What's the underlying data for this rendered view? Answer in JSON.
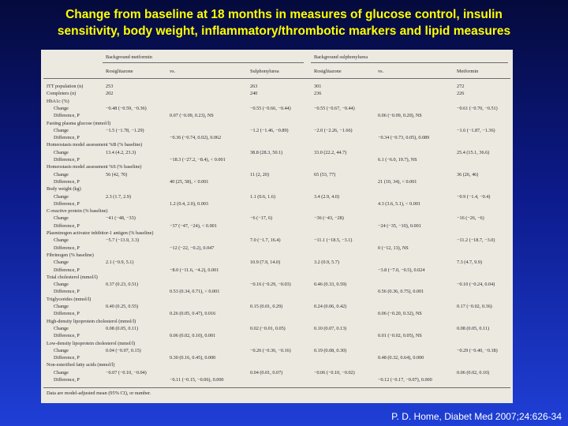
{
  "slide": {
    "title_line1": "Change from baseline at 18 months in measures of glucose control, insulin",
    "title_line2": "sensitivity, body weight, inflammatory/thrombotic markers and lipid measures",
    "citation": "P. D. Home, Diabet Med 2007;24:626-34"
  },
  "table": {
    "group_metformin": "Background metformin",
    "group_sulphonylurea": "Background sulphonylurea",
    "col_headers": [
      "Rosiglitazone",
      "vs.",
      "Sulphonylurea",
      "Rosiglitazone",
      "vs.",
      "Metformin"
    ],
    "rows": [
      {
        "label": "ITT population (n)",
        "cells": [
          "253",
          "",
          "263",
          "301",
          "",
          "272"
        ]
      },
      {
        "label": "Completers (n)",
        "cells": [
          "202",
          "",
          "240",
          "236",
          "",
          "226"
        ]
      },
      {
        "label": "HbA1c (%)",
        "cells": [
          "",
          "",
          "",
          "",
          "",
          ""
        ]
      },
      {
        "label": "Change",
        "cells": [
          "−0.48 (−0.59, −0.36)",
          "",
          "−0.55 (−0.66, −0.44)",
          "−0.55 (−0.67, −0.44)",
          "",
          "−0.61 (−0.70, −0.51)"
        ]
      },
      {
        "label": "Difference, P",
        "cells": [
          "",
          "0.07 (−0.09, 0.23), NS",
          "",
          "",
          "0.06 (−0.09, 0.20), NS",
          ""
        ]
      },
      {
        "label": "Fasting plasma glucose (mmol/l)",
        "cells": [
          "",
          "",
          "",
          "",
          "",
          ""
        ]
      },
      {
        "label": "Change",
        "cells": [
          "−1.5 (−1.78, −1.29)",
          "",
          "−1.2 (−1.46, −0.89)",
          "−2.0 (−2.26, −1.66)",
          "",
          "−1.6 (−1.87, −1.36)"
        ]
      },
      {
        "label": "Difference, P",
        "cells": [
          "",
          "−0.36 (−0.74, 0.02), 0.062",
          "",
          "",
          "−0.34 (−0.73, 0.05), 0.089",
          ""
        ]
      },
      {
        "label": "Homeostasis model assessment %B (% baseline)",
        "cells": [
          "",
          "",
          "",
          "",
          "",
          ""
        ]
      },
      {
        "label": "Change",
        "cells": [
          "13.4 (4.2, 23.3)",
          "",
          "38.8 (28.3, 50.1)",
          "33.0 (22.2, 44.7)",
          "",
          "25.4 (15.1, 36.6)"
        ]
      },
      {
        "label": "Difference, P",
        "cells": [
          "",
          "−18.3 (−27.2, −8.4), < 0.001",
          "",
          "",
          "6.1 (−6.0, 19.7), NS",
          ""
        ]
      },
      {
        "label": "Homeostasis model assessment %S (% baseline)",
        "cells": [
          "",
          "",
          "",
          "",
          "",
          ""
        ]
      },
      {
        "label": "Change",
        "cells": [
          "56 (42, 70)",
          "",
          "11 (2, 20)",
          "65 (53, 77)",
          "",
          "36 (26, 46)"
        ]
      },
      {
        "label": "Difference, P",
        "cells": [
          "",
          "40 (25, 58), < 0.001",
          "",
          "",
          "21 (10, 34), < 0.001",
          ""
        ]
      },
      {
        "label": "Body weight (kg)",
        "cells": [
          "",
          "",
          "",
          "",
          "",
          ""
        ]
      },
      {
        "label": "Change",
        "cells": [
          "2.3 (1.7, 2.9)",
          "",
          "1.1 (0.6, 1.6)",
          "3.4 (2.9, 4.0)",
          "",
          "−0.9 (−1.4, −0.4)"
        ]
      },
      {
        "label": "Difference, P",
        "cells": [
          "",
          "1.2 (0.4, 2.0), 0.003",
          "",
          "",
          "4.3 (3.6, 5.1), < 0.001",
          ""
        ]
      },
      {
        "label": "C-reactive protein (% baseline)",
        "cells": [
          "",
          "",
          "",
          "",
          "",
          ""
        ]
      },
      {
        "label": "Change",
        "cells": [
          "−41 (−48, −33)",
          "",
          "−6 (−17, 6)",
          "−36 (−43, −28)",
          "",
          "−16 (−26, −6)"
        ]
      },
      {
        "label": "Difference, P",
        "cells": [
          "",
          "−37 (−47, −24), < 0.001",
          "",
          "",
          "−24 (−35, −10), 0.001",
          ""
        ]
      },
      {
        "label": "Plasminogen activator inhibitor-1 antigen (% baseline)",
        "cells": [
          "",
          "",
          "",
          "",
          "",
          ""
        ]
      },
      {
        "label": "Change",
        "cells": [
          "−5.7 (−13.9, 3.3)",
          "",
          "7.0 (−1.7, 16.4)",
          "−11.1 (−18.5, −3.1)",
          "",
          "−11.2 (−18.7, −3.0)"
        ]
      },
      {
        "label": "Difference, P",
        "cells": [
          "",
          "−12 (−22, −0.2), 0.047",
          "",
          "",
          "0 (−12, 13), NS",
          ""
        ]
      },
      {
        "label": "Fibrinogen (% baseline)",
        "cells": [
          "",
          "",
          "",
          "",
          "",
          ""
        ]
      },
      {
        "label": "Change",
        "cells": [
          "2.1 (−0.9, 5.1)",
          "",
          "10.9 (7.9, 14.0)",
          "3.2 (0.9, 5.7)",
          "",
          "7.3 (4.7, 9.9)"
        ]
      },
      {
        "label": "Difference, P",
        "cells": [
          "",
          "−8.0 (−11.6, −4.2), 0.001",
          "",
          "",
          "−3.8 (−7.0, −0.5), 0.024",
          ""
        ]
      },
      {
        "label": "Total cholesterol (mmol/l)",
        "cells": [
          "",
          "",
          "",
          "",
          "",
          ""
        ]
      },
      {
        "label": "Change",
        "cells": [
          "0.37 (0.23, 0.51)",
          "",
          "−0.16 (−0.29, −0.03)",
          "0.46 (0.33, 0.59)",
          "",
          "−0.10 (−0.24, 0.04)"
        ]
      },
      {
        "label": "Difference, P",
        "cells": [
          "",
          "0.53 (0.34, 0.71), < 0.001",
          "",
          "",
          "0.56 (0.36, 0.75), 0.001",
          ""
        ]
      },
      {
        "label": "Triglycerides (mmol/l)",
        "cells": [
          "",
          "",
          "",
          "",
          "",
          ""
        ]
      },
      {
        "label": "Change",
        "cells": [
          "0.40 (0.25, 0.55)",
          "",
          "0.15 (0.01, 0.29)",
          "0.24 (0.06, 0.42)",
          "",
          "0.17 (−0.02, 0.36)"
        ]
      },
      {
        "label": "Difference, P",
        "cells": [
          "",
          "0.26 (0.05, 0.47), 0.016",
          "",
          "",
          "0.06 (−0.20, 0.32), NS",
          ""
        ]
      },
      {
        "label": "High-density lipoprotein cholesterol (mmol/l)",
        "cells": [
          "",
          "",
          "",
          "",
          "",
          ""
        ]
      },
      {
        "label": "Change",
        "cells": [
          "0.08 (0.05, 0.11)",
          "",
          "0.02 (−0.01, 0.05)",
          "0.10 (0.07, 0.13)",
          "",
          "0.08 (0.05, 0.11)"
        ]
      },
      {
        "label": "Difference, P",
        "cells": [
          "",
          "0.06 (0.02, 0.10), 0.001",
          "",
          "",
          "0.01 (−0.02, 0.05), NS",
          ""
        ]
      },
      {
        "label": "Low-density lipoprotein cholesterol (mmol/l)",
        "cells": [
          "",
          "",
          "",
          "",
          "",
          ""
        ]
      },
      {
        "label": "Change",
        "cells": [
          "0.04 (−0.07, 0.15)",
          "",
          "−0.26 (−0.36, −0.16)",
          "0.19 (0.08, 0.30)",
          "",
          "−0.29 (−0.40, −0.18)"
        ]
      },
      {
        "label": "Difference, P",
        "cells": [
          "",
          "0.30 (0.16, 0.45), 0.000",
          "",
          "",
          "0.48 (0.32, 0.64), 0.000",
          ""
        ]
      },
      {
        "label": "Non-esterified fatty acids (mmol/l)",
        "cells": [
          "",
          "",
          "",
          "",
          "",
          ""
        ]
      },
      {
        "label": "Change",
        "cells": [
          "−0.07 (−0.10, −0.04)",
          "",
          "0.04 (0.01, 0.07)",
          "−0.06 (−0.10, −0.02)",
          "",
          "0.06 (0.02, 0.10)"
        ]
      },
      {
        "label": "Difference, P",
        "cells": [
          "",
          "−0.11 (−0.15, −0.06), 0.000",
          "",
          "",
          "−0.12 (−0.17, −0.07), 0.000",
          ""
        ]
      }
    ],
    "footnote": "Data are model-adjusted mean (95% CI), or number."
  }
}
